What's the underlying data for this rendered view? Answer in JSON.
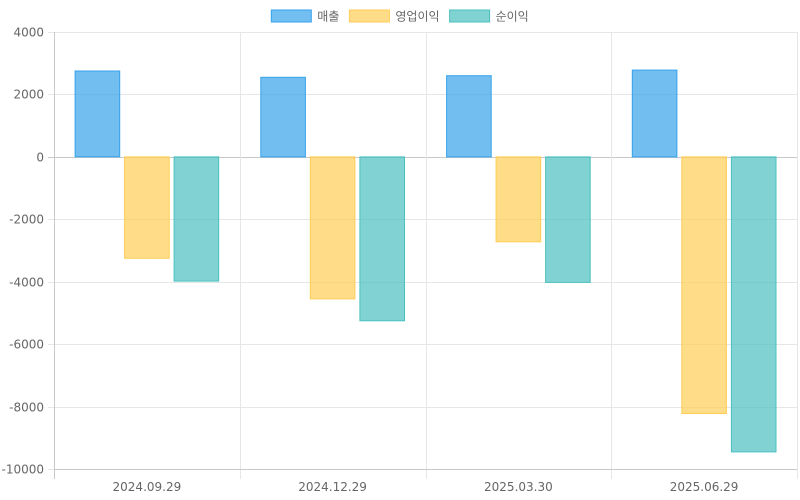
{
  "chart_data": {
    "type": "bar",
    "categories": [
      "2024.09.29",
      "2024.12.29",
      "2025.03.30",
      "2025.06.29"
    ],
    "series": [
      {
        "name": "매출",
        "values": [
          2750,
          2550,
          2600,
          2780
        ],
        "color": "#36a2eb"
      },
      {
        "name": "영업이익",
        "values": [
          -3250,
          -4550,
          -2720,
          -8220
        ],
        "color": "#ffcd56"
      },
      {
        "name": "순이익",
        "values": [
          -3980,
          -5250,
          -4020,
          -9450
        ],
        "color": "#4bc0c0"
      }
    ],
    "ylim": [
      -10000,
      4000
    ],
    "yticks": [
      4000,
      2000,
      0,
      -2000,
      -4000,
      -6000,
      -8000,
      -10000
    ],
    "grid": true,
    "legend_position": "top-center"
  }
}
